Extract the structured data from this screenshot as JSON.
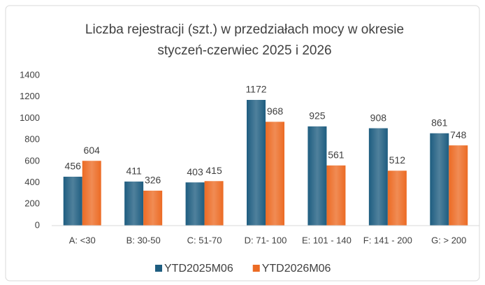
{
  "chart_data": {
    "type": "bar",
    "title": "Liczba rejestracji (szt.) w przedziałach mocy w okresie styczeń-czerwiec 2025 i 2026",
    "categories": [
      "A: <30",
      "B: 30-50",
      "C: 51-70",
      "D: 71- 100",
      "E: 101 - 140",
      "F: 141 - 200",
      "G: > 200"
    ],
    "series": [
      {
        "name": "YTD2025M06",
        "color": "#1e5d80",
        "values": [
          456,
          411,
          403,
          1172,
          925,
          908,
          861
        ]
      },
      {
        "name": "YTD2026M06",
        "color": "#ec6b24",
        "values": [
          604,
          326,
          415,
          968,
          561,
          512,
          748
        ]
      }
    ],
    "ylim": [
      0,
      1400
    ],
    "yticks": [
      0,
      200,
      400,
      600,
      800,
      1000,
      1200,
      1400
    ],
    "grid": false,
    "legend": "bottom"
  }
}
